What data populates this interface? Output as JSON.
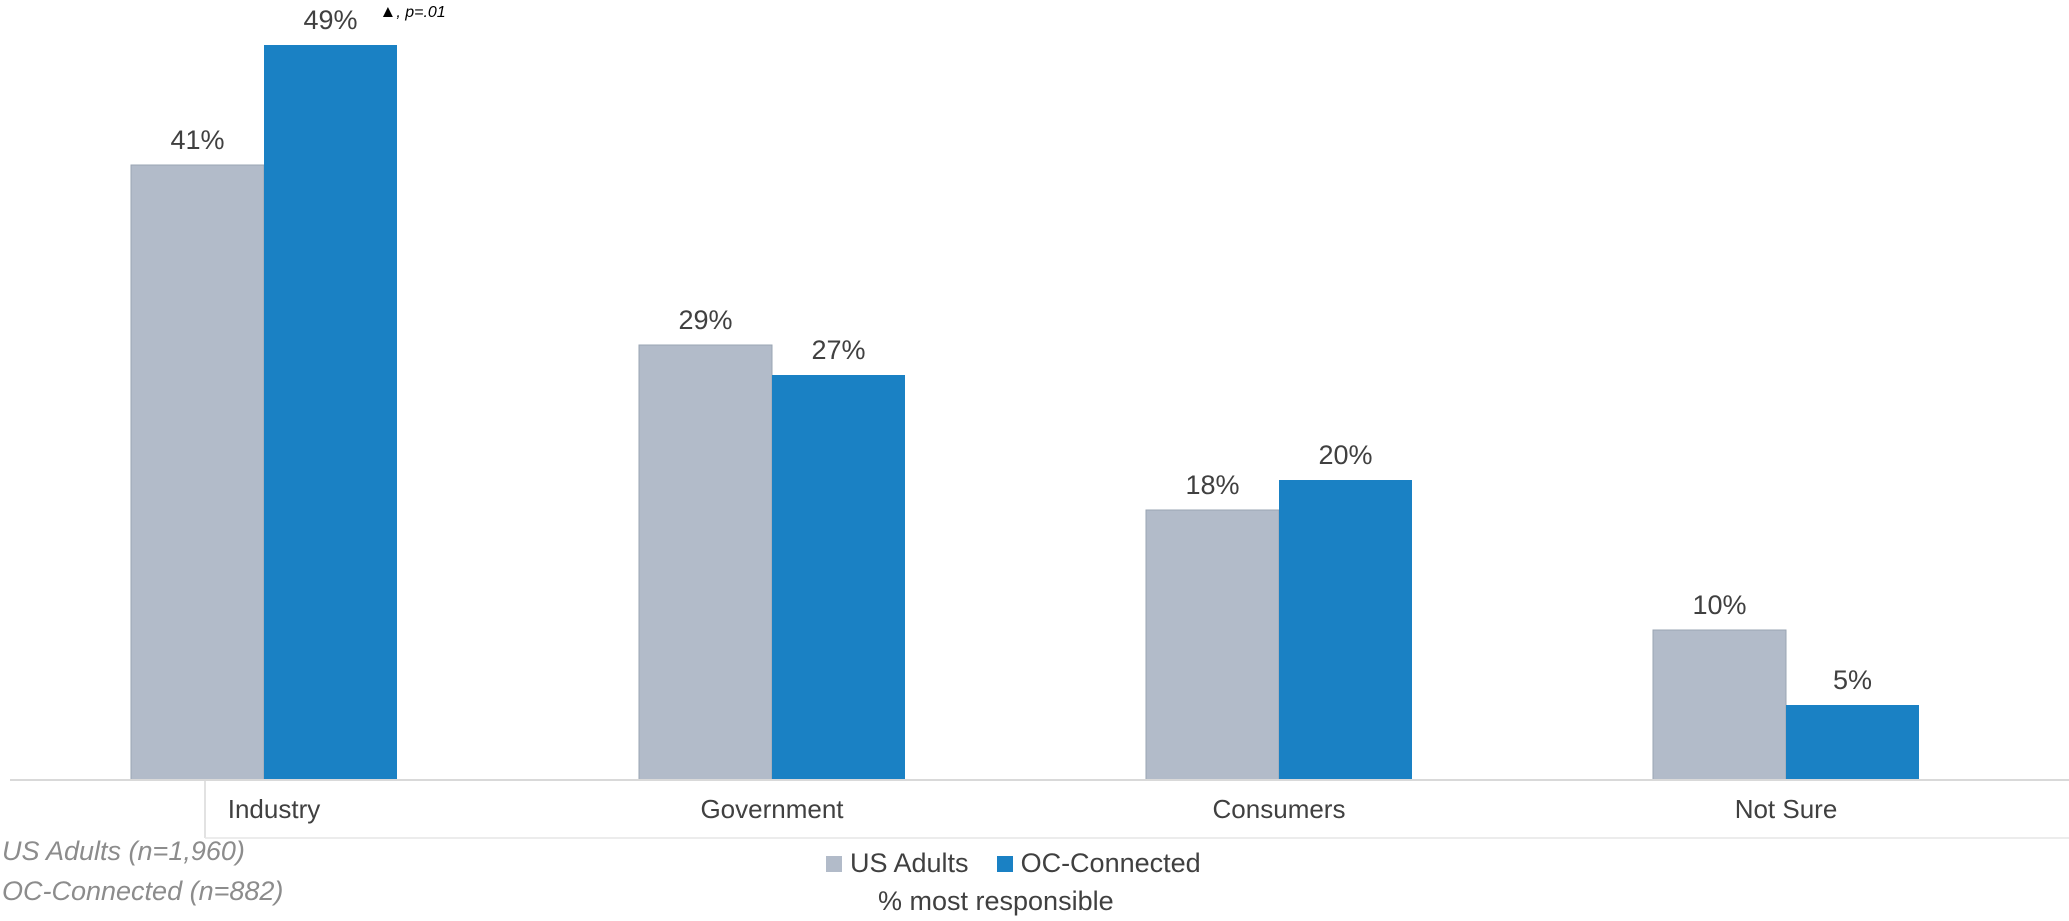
{
  "chart_data": {
    "type": "bar",
    "title": "",
    "xlabel": "% most responsible",
    "ylabel": "",
    "ylim": [
      0,
      50
    ],
    "grid": false,
    "legend_position": "bottom",
    "categories": [
      "Industry",
      "Government",
      "Consumers",
      "Not Sure"
    ],
    "series": [
      {
        "name": "US Adults",
        "color": "#b2bbc9",
        "values": [
          41,
          29,
          18,
          10
        ],
        "labels": [
          "41%",
          "29%",
          "18%",
          "10%"
        ]
      },
      {
        "name": "OC-Connected",
        "color": "#1a81c4",
        "values": [
          49,
          27,
          20,
          5
        ],
        "labels": [
          "49%",
          "27%",
          "20%",
          "5%"
        ]
      }
    ],
    "annotation": {
      "category": "Industry",
      "series": "OC-Connected",
      "symbol": "▲",
      "text": ", p=.01"
    }
  },
  "notes": [
    "US Adults (n=1,960)",
    "OC-Connected (n=882)"
  ]
}
